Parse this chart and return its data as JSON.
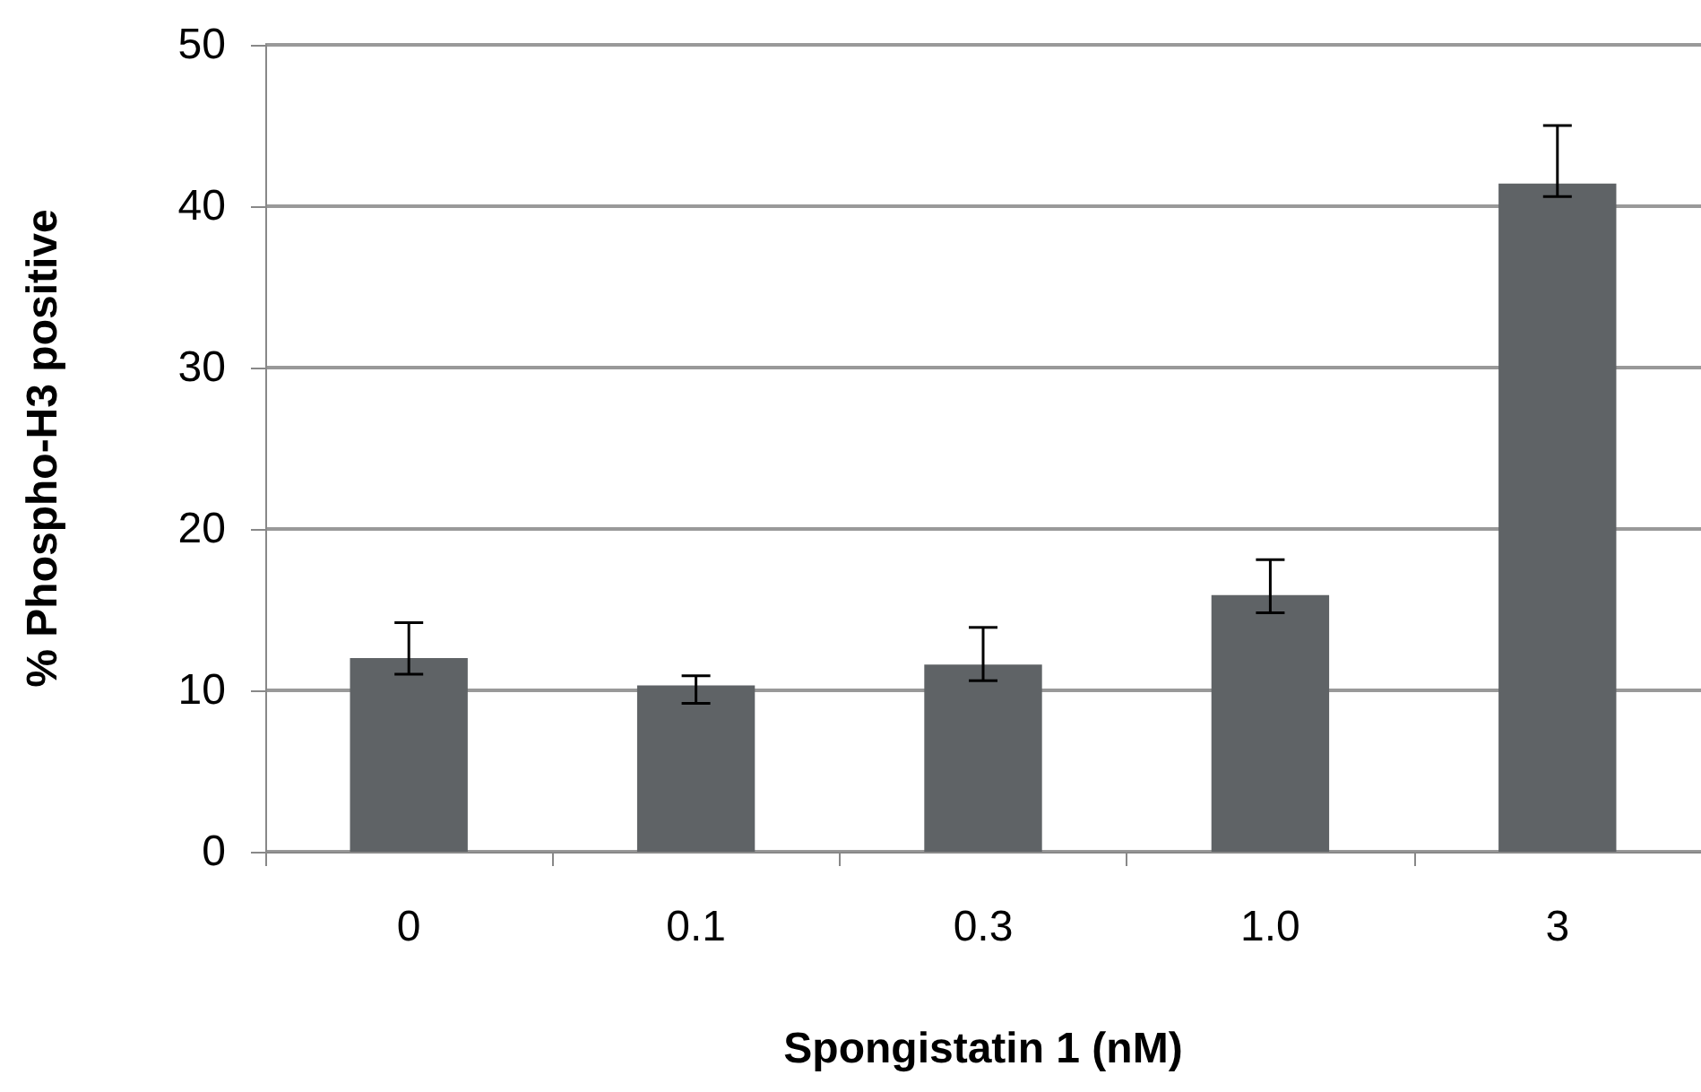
{
  "chart_data": {
    "type": "bar",
    "xlabel": "Spongistatin 1 (nM)",
    "ylabel": "% Phospho-H3 positive",
    "categories": [
      "0",
      "0.1",
      "0.3",
      "1.0",
      "3"
    ],
    "values": [
      12.0,
      10.3,
      11.6,
      15.9,
      41.4
    ],
    "errors": [
      [
        11.0,
        14.2
      ],
      [
        9.2,
        10.9
      ],
      [
        10.6,
        13.9
      ],
      [
        14.8,
        18.1
      ],
      [
        40.6,
        45.0
      ]
    ],
    "color": "#5f6366",
    "ylim": [
      0,
      50
    ],
    "yticks": [
      0,
      10,
      20,
      30,
      40,
      50
    ],
    "grid": "y"
  }
}
